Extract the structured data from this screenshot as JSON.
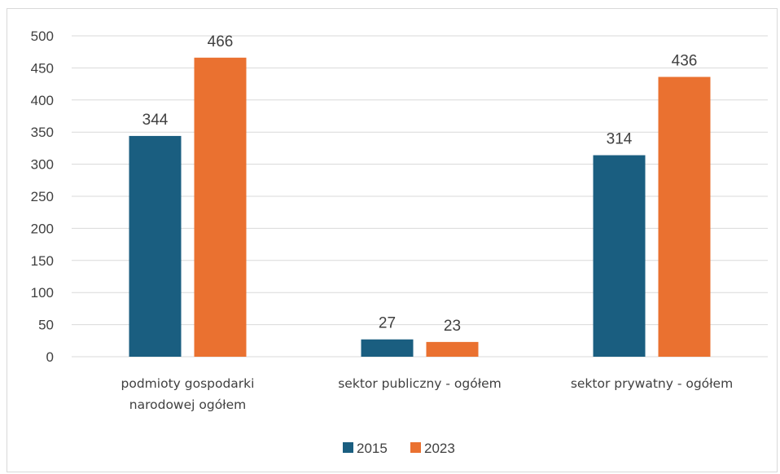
{
  "chart_data": {
    "type": "bar",
    "categories": [
      [
        "podmioty gospodarki",
        "narodowej ogółem"
      ],
      [
        "sektor publiczny - ogółem"
      ],
      [
        "sektor prywatny - ogółem"
      ]
    ],
    "series": [
      {
        "name": "2015",
        "color": "#1a5e80",
        "values": [
          344,
          27,
          314
        ]
      },
      {
        "name": "2023",
        "color": "#ea7130",
        "values": [
          466,
          23,
          436
        ]
      }
    ],
    "ylim": [
      0,
      500
    ],
    "yticks": [
      0,
      50,
      100,
      150,
      200,
      250,
      300,
      350,
      400,
      450,
      500
    ],
    "grid": true,
    "legend_position": "bottom",
    "gridline_color": "#d9d9d9"
  }
}
